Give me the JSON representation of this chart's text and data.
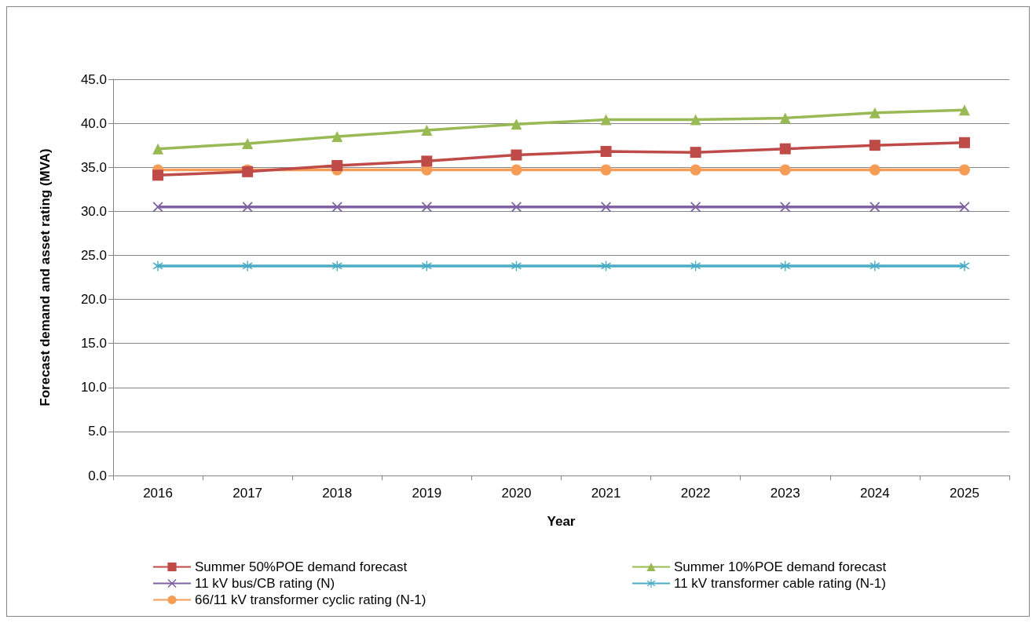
{
  "chart_data": {
    "type": "line",
    "xlabel": "Year",
    "ylabel": "Forecast demand and asset rating (MVA)",
    "categories": [
      "2016",
      "2017",
      "2018",
      "2019",
      "2020",
      "2021",
      "2022",
      "2023",
      "2024",
      "2025"
    ],
    "series": [
      {
        "name": "Summer 50%POE demand forecast",
        "color": "#be4b48",
        "marker": "square",
        "values": [
          34.1,
          34.5,
          35.2,
          35.7,
          36.4,
          36.8,
          36.7,
          37.1,
          37.5,
          37.8
        ]
      },
      {
        "name": "Summer 10%POE demand forecast",
        "color": "#98b954",
        "marker": "triangle",
        "values": [
          37.1,
          37.7,
          38.5,
          39.2,
          39.9,
          40.4,
          40.4,
          40.6,
          41.2,
          41.5
        ]
      },
      {
        "name": "11 kV bus/CB rating (N)",
        "color": "#7e62a1",
        "marker": "cross",
        "values": [
          30.5,
          30.5,
          30.5,
          30.5,
          30.5,
          30.5,
          30.5,
          30.5,
          30.5,
          30.5
        ]
      },
      {
        "name": "11 kV transformer cable rating (N-1)",
        "color": "#4aacc5",
        "marker": "star",
        "values": [
          23.8,
          23.8,
          23.8,
          23.8,
          23.8,
          23.8,
          23.8,
          23.8,
          23.8,
          23.8
        ]
      },
      {
        "name": "66/11 kV transformer cyclic rating (N-1)",
        "color": "#f59d56",
        "marker": "circle",
        "values": [
          34.7,
          34.7,
          34.7,
          34.7,
          34.7,
          34.7,
          34.7,
          34.7,
          34.7,
          34.7
        ]
      }
    ],
    "ylim": [
      0,
      45
    ],
    "yticks": [
      {
        "value": 0,
        "label": "0.0"
      },
      {
        "value": 5,
        "label": "5.0"
      },
      {
        "value": 10,
        "label": "10.0"
      },
      {
        "value": 15,
        "label": "15.0"
      },
      {
        "value": 20,
        "label": "20.0"
      },
      {
        "value": 25,
        "label": "25.0"
      },
      {
        "value": 30,
        "label": "30.0"
      },
      {
        "value": 35,
        "label": "35.0"
      },
      {
        "value": 40,
        "label": "40.0"
      },
      {
        "value": 45,
        "label": "45.0"
      }
    ],
    "grid": "y",
    "legend": "bottom",
    "line_style": "solid"
  }
}
